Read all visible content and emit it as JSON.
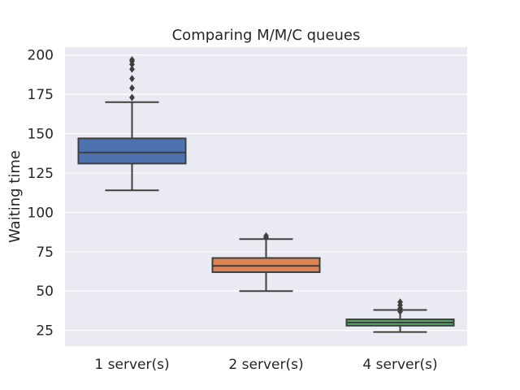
{
  "chart_data": {
    "type": "box",
    "title": "Comparing M/M/C queues",
    "xlabel": "",
    "ylabel": "Waiting time",
    "ylim": [
      15,
      205
    ],
    "yticks": [
      25,
      50,
      75,
      100,
      125,
      150,
      175,
      200
    ],
    "grid": true,
    "categories": [
      "1 server(s)",
      "2 server(s)",
      "4 server(s)"
    ],
    "boxes": [
      {
        "category": "1 server(s)",
        "whisker_low": 114,
        "q1": 131,
        "median": 138,
        "q3": 147,
        "whisker_high": 170,
        "outliers": [
          173,
          179,
          185,
          191,
          194,
          196,
          197
        ],
        "color": "#4c72b0"
      },
      {
        "category": "2 server(s)",
        "whisker_low": 50,
        "q1": 62,
        "median": 66,
        "q3": 71,
        "whisker_high": 83,
        "outliers": [
          84,
          85
        ],
        "color": "#dd8452"
      },
      {
        "category": "4 server(s)",
        "whisker_low": 24,
        "q1": 28,
        "median": 30,
        "q3": 32,
        "whisker_high": 38,
        "outliers": [
          37,
          39,
          41,
          43
        ],
        "color": "#55a868"
      }
    ],
    "colors": {
      "background": "#eaeaf2",
      "grid": "#ffffff",
      "line": "#3f3f3f",
      "text": "#262626"
    }
  }
}
